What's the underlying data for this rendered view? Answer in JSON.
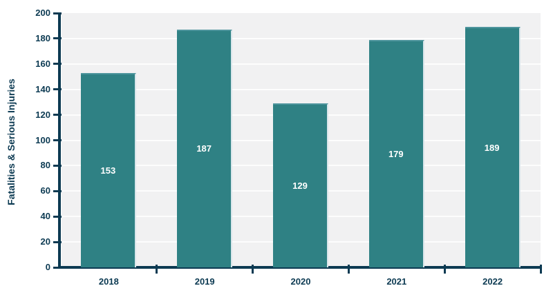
{
  "chart_data": {
    "type": "bar",
    "categories": [
      "2018",
      "2019",
      "2020",
      "2021",
      "2022"
    ],
    "values": [
      153,
      187,
      129,
      179,
      189
    ],
    "title": "",
    "xlabel": "",
    "ylabel": "Fatalities & Serious Injuries",
    "ylim": [
      0,
      200
    ],
    "ytick_step": 20,
    "grid": true,
    "legend": "none",
    "colors": {
      "bar": "#2f8184",
      "bar_top_edge": "#4e959d",
      "bar_right_edge": "#d9e6eb",
      "axis": "#0c3a52",
      "tick_label": "#0c3a52",
      "plot_background": "#f1f1f2",
      "gridline": "#fdfdfd",
      "value_label": "#ffffff",
      "page_background": "#ffffff"
    }
  }
}
